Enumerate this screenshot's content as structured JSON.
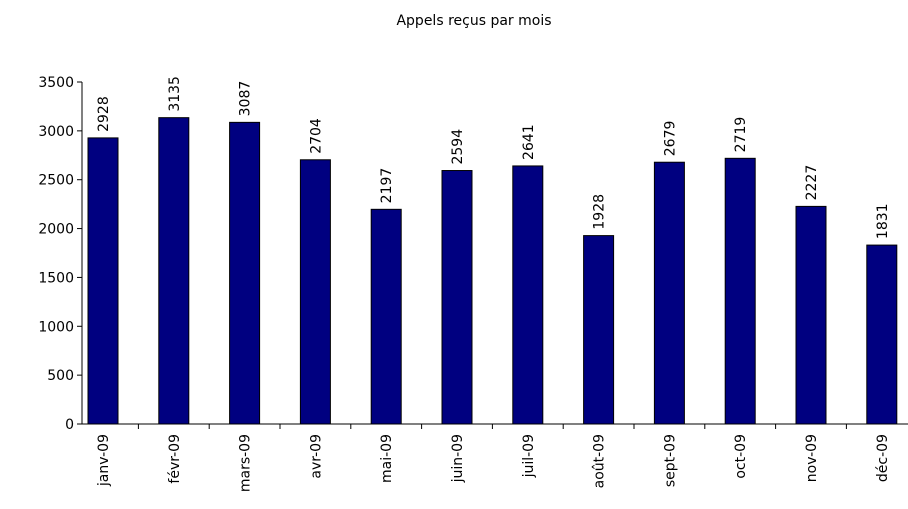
{
  "chart_data": {
    "type": "bar",
    "title": "Appels reçus par mois",
    "categories": [
      "janv-09",
      "févr-09",
      "mars-09",
      "avr-09",
      "mai-09",
      "juin-09",
      "juil-09",
      "août-09",
      "sept-09",
      "oct-09",
      "nov-09",
      "déc-09"
    ],
    "values": [
      2928,
      3135,
      3087,
      2704,
      2197,
      2594,
      2641,
      1928,
      2679,
      2719,
      2227,
      1831
    ],
    "color": "#000080",
    "ylim": [
      0,
      3500
    ],
    "yticks": [
      0,
      500,
      1000,
      1500,
      2000,
      2500,
      3000,
      3500
    ],
    "grid": false
  }
}
